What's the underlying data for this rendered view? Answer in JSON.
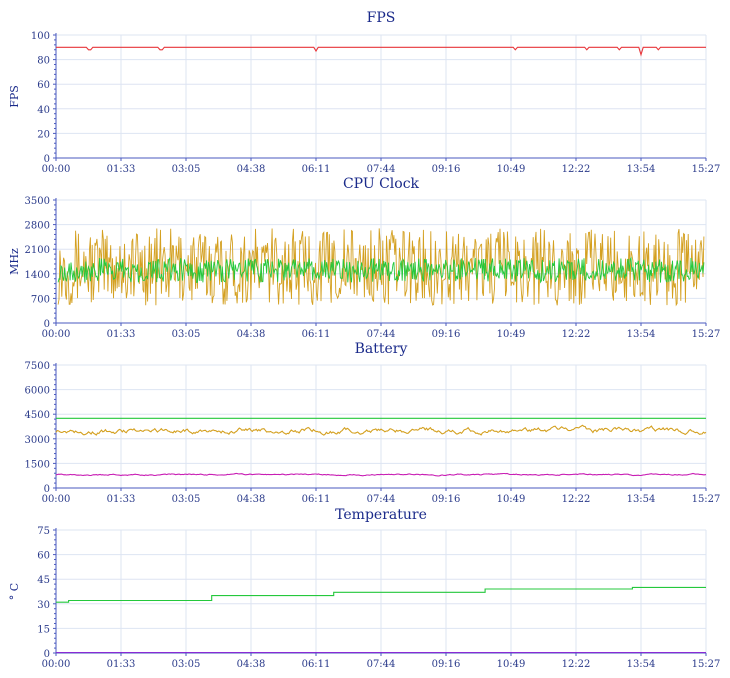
{
  "chart_data": [
    {
      "type": "line",
      "title": "FPS",
      "xlabel": "",
      "ylabel": "FPS",
      "ylim": [
        0,
        100
      ],
      "yticks": [
        "0",
        "20",
        "40",
        "60",
        "80",
        "100"
      ],
      "xticks": [
        "00:00",
        "01:33",
        "03:05",
        "04:38",
        "06:11",
        "07:44",
        "09:16",
        "10:49",
        "12:22",
        "13:54",
        "15:27"
      ],
      "grid": true,
      "series": [
        {
          "color": "#e8363a",
          "style": "flat",
          "level": 90,
          "dips": [
            [
              0.8,
              88
            ],
            [
              2.5,
              88
            ],
            [
              6.2,
              87
            ],
            [
              10.9,
              88
            ],
            [
              12.6,
              88
            ],
            [
              13.4,
              88
            ],
            [
              13.9,
              84
            ],
            [
              14.3,
              88
            ]
          ]
        }
      ]
    },
    {
      "type": "line",
      "title": "CPU Clock",
      "xlabel": "",
      "ylabel": "MHz",
      "ylim": [
        0,
        3500
      ],
      "yticks": [
        "0",
        "700",
        "1400",
        "2100",
        "2800",
        "3500"
      ],
      "xticks": [
        "00:00",
        "01:33",
        "03:05",
        "04:38",
        "06:11",
        "07:44",
        "09:16",
        "10:49",
        "12:22",
        "13:54",
        "15:27"
      ],
      "grid": true,
      "series": [
        {
          "color": "#d4a020",
          "style": "noisy",
          "level": 1600,
          "amp": 1100,
          "min": 400,
          "max": 2800
        },
        {
          "color": "#24c83c",
          "style": "noisy",
          "level": 1500,
          "amp": 350,
          "min": 1000,
          "max": 1900
        }
      ]
    },
    {
      "type": "line",
      "title": "Battery",
      "xlabel": "",
      "ylabel": "",
      "ylim": [
        0,
        7500
      ],
      "yticks": [
        "0",
        "1500",
        "3000",
        "4500",
        "6000",
        "7500"
      ],
      "xticks": [
        "00:00",
        "01:33",
        "03:05",
        "04:38",
        "06:11",
        "07:44",
        "09:16",
        "10:49",
        "12:22",
        "13:54",
        "15:27"
      ],
      "grid": true,
      "series": [
        {
          "color": "#24c83c",
          "style": "flat",
          "level": 4250,
          "dips": []
        },
        {
          "color": "#d4a020",
          "style": "wiggle",
          "level": 3500,
          "amp": 350
        },
        {
          "color": "#c81eb4",
          "style": "wiggle",
          "level": 820,
          "amp": 90
        }
      ]
    },
    {
      "type": "line",
      "title": "Temperature",
      "xlabel": "",
      "ylabel": "° C",
      "ylim": [
        0,
        75
      ],
      "yticks": [
        "0",
        "15",
        "30",
        "45",
        "60",
        "75"
      ],
      "xticks": [
        "00:00",
        "01:33",
        "03:05",
        "04:38",
        "06:11",
        "07:44",
        "09:16",
        "10:49",
        "12:22",
        "13:54",
        "15:27"
      ],
      "grid": true,
      "series": [
        {
          "color": "#24c83c",
          "style": "step",
          "steps": [
            [
              0,
              31
            ],
            [
              0.3,
              32
            ],
            [
              3.7,
              35
            ],
            [
              6.6,
              37
            ],
            [
              10.2,
              39
            ],
            [
              13.7,
              40
            ],
            [
              15.45,
              40
            ]
          ]
        },
        {
          "color": "#8a2ad4",
          "style": "flat",
          "level": 0.3,
          "dips": []
        }
      ]
    }
  ]
}
